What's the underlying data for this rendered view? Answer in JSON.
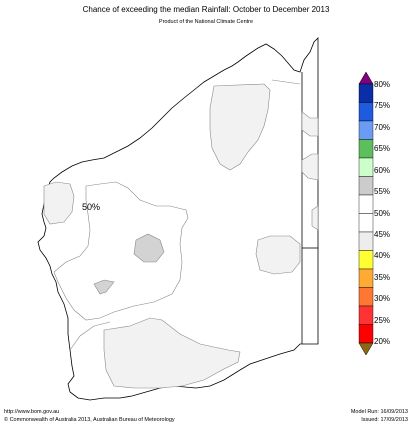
{
  "header": {
    "title": "Chance of exceeding the median Rainfall: October to December 2013",
    "subtitle": "Product of the National Climate Centre"
  },
  "map": {
    "region_label": "50%"
  },
  "legend": {
    "colors": [
      "#0a2ea8",
      "#1e5bde",
      "#6b9cf5",
      "#5cbf5c",
      "#ccffcc",
      "#cccccc",
      "#ffffff",
      "#ffffff",
      "#ededed",
      "#ffff33",
      "#ffaa33",
      "#ff7733",
      "#ff3333",
      "#ff0000"
    ],
    "top_arrow_color": "#800080",
    "bottom_arrow_color": "#8b6914",
    "labels": [
      "80%",
      "75%",
      "70%",
      "65%",
      "60%",
      "55%",
      "50%",
      "45%",
      "40%",
      "35%",
      "30%",
      "25%",
      "20%"
    ]
  },
  "footer": {
    "url": "http://www.bom.gov.au",
    "copyright": "©  Commonwealth of Australia 2013, Australian Bureau of Meteorology",
    "model_run": "Model Run: 16/09/2013",
    "issued": "Issued: 17/09/2013"
  }
}
